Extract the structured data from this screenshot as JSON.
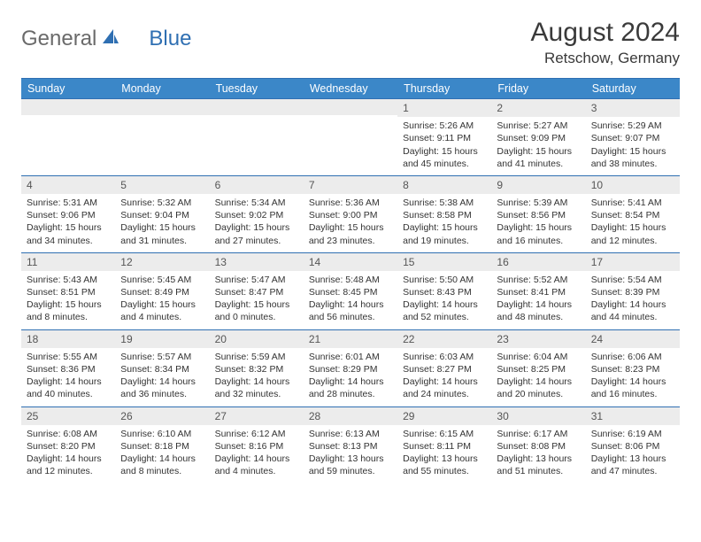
{
  "logo": {
    "text1": "General",
    "text2": "Blue"
  },
  "title": "August 2024",
  "location": "Retschow, Germany",
  "colors": {
    "header_bg": "#3b87c8",
    "header_text": "#ffffff",
    "daynum_bg": "#ececec",
    "border": "#2f6fb2",
    "logo_gray": "#6a6a6a",
    "logo_blue": "#2f6fb2"
  },
  "weekdays": [
    "Sunday",
    "Monday",
    "Tuesday",
    "Wednesday",
    "Thursday",
    "Friday",
    "Saturday"
  ],
  "weeks": [
    [
      {
        "n": "",
        "l1": "",
        "l2": "",
        "l3": "",
        "l4": ""
      },
      {
        "n": "",
        "l1": "",
        "l2": "",
        "l3": "",
        "l4": ""
      },
      {
        "n": "",
        "l1": "",
        "l2": "",
        "l3": "",
        "l4": ""
      },
      {
        "n": "",
        "l1": "",
        "l2": "",
        "l3": "",
        "l4": ""
      },
      {
        "n": "1",
        "l1": "Sunrise: 5:26 AM",
        "l2": "Sunset: 9:11 PM",
        "l3": "Daylight: 15 hours",
        "l4": "and 45 minutes."
      },
      {
        "n": "2",
        "l1": "Sunrise: 5:27 AM",
        "l2": "Sunset: 9:09 PM",
        "l3": "Daylight: 15 hours",
        "l4": "and 41 minutes."
      },
      {
        "n": "3",
        "l1": "Sunrise: 5:29 AM",
        "l2": "Sunset: 9:07 PM",
        "l3": "Daylight: 15 hours",
        "l4": "and 38 minutes."
      }
    ],
    [
      {
        "n": "4",
        "l1": "Sunrise: 5:31 AM",
        "l2": "Sunset: 9:06 PM",
        "l3": "Daylight: 15 hours",
        "l4": "and 34 minutes."
      },
      {
        "n": "5",
        "l1": "Sunrise: 5:32 AM",
        "l2": "Sunset: 9:04 PM",
        "l3": "Daylight: 15 hours",
        "l4": "and 31 minutes."
      },
      {
        "n": "6",
        "l1": "Sunrise: 5:34 AM",
        "l2": "Sunset: 9:02 PM",
        "l3": "Daylight: 15 hours",
        "l4": "and 27 minutes."
      },
      {
        "n": "7",
        "l1": "Sunrise: 5:36 AM",
        "l2": "Sunset: 9:00 PM",
        "l3": "Daylight: 15 hours",
        "l4": "and 23 minutes."
      },
      {
        "n": "8",
        "l1": "Sunrise: 5:38 AM",
        "l2": "Sunset: 8:58 PM",
        "l3": "Daylight: 15 hours",
        "l4": "and 19 minutes."
      },
      {
        "n": "9",
        "l1": "Sunrise: 5:39 AM",
        "l2": "Sunset: 8:56 PM",
        "l3": "Daylight: 15 hours",
        "l4": "and 16 minutes."
      },
      {
        "n": "10",
        "l1": "Sunrise: 5:41 AM",
        "l2": "Sunset: 8:54 PM",
        "l3": "Daylight: 15 hours",
        "l4": "and 12 minutes."
      }
    ],
    [
      {
        "n": "11",
        "l1": "Sunrise: 5:43 AM",
        "l2": "Sunset: 8:51 PM",
        "l3": "Daylight: 15 hours",
        "l4": "and 8 minutes."
      },
      {
        "n": "12",
        "l1": "Sunrise: 5:45 AM",
        "l2": "Sunset: 8:49 PM",
        "l3": "Daylight: 15 hours",
        "l4": "and 4 minutes."
      },
      {
        "n": "13",
        "l1": "Sunrise: 5:47 AM",
        "l2": "Sunset: 8:47 PM",
        "l3": "Daylight: 15 hours",
        "l4": "and 0 minutes."
      },
      {
        "n": "14",
        "l1": "Sunrise: 5:48 AM",
        "l2": "Sunset: 8:45 PM",
        "l3": "Daylight: 14 hours",
        "l4": "and 56 minutes."
      },
      {
        "n": "15",
        "l1": "Sunrise: 5:50 AM",
        "l2": "Sunset: 8:43 PM",
        "l3": "Daylight: 14 hours",
        "l4": "and 52 minutes."
      },
      {
        "n": "16",
        "l1": "Sunrise: 5:52 AM",
        "l2": "Sunset: 8:41 PM",
        "l3": "Daylight: 14 hours",
        "l4": "and 48 minutes."
      },
      {
        "n": "17",
        "l1": "Sunrise: 5:54 AM",
        "l2": "Sunset: 8:39 PM",
        "l3": "Daylight: 14 hours",
        "l4": "and 44 minutes."
      }
    ],
    [
      {
        "n": "18",
        "l1": "Sunrise: 5:55 AM",
        "l2": "Sunset: 8:36 PM",
        "l3": "Daylight: 14 hours",
        "l4": "and 40 minutes."
      },
      {
        "n": "19",
        "l1": "Sunrise: 5:57 AM",
        "l2": "Sunset: 8:34 PM",
        "l3": "Daylight: 14 hours",
        "l4": "and 36 minutes."
      },
      {
        "n": "20",
        "l1": "Sunrise: 5:59 AM",
        "l2": "Sunset: 8:32 PM",
        "l3": "Daylight: 14 hours",
        "l4": "and 32 minutes."
      },
      {
        "n": "21",
        "l1": "Sunrise: 6:01 AM",
        "l2": "Sunset: 8:29 PM",
        "l3": "Daylight: 14 hours",
        "l4": "and 28 minutes."
      },
      {
        "n": "22",
        "l1": "Sunrise: 6:03 AM",
        "l2": "Sunset: 8:27 PM",
        "l3": "Daylight: 14 hours",
        "l4": "and 24 minutes."
      },
      {
        "n": "23",
        "l1": "Sunrise: 6:04 AM",
        "l2": "Sunset: 8:25 PM",
        "l3": "Daylight: 14 hours",
        "l4": "and 20 minutes."
      },
      {
        "n": "24",
        "l1": "Sunrise: 6:06 AM",
        "l2": "Sunset: 8:23 PM",
        "l3": "Daylight: 14 hours",
        "l4": "and 16 minutes."
      }
    ],
    [
      {
        "n": "25",
        "l1": "Sunrise: 6:08 AM",
        "l2": "Sunset: 8:20 PM",
        "l3": "Daylight: 14 hours",
        "l4": "and 12 minutes."
      },
      {
        "n": "26",
        "l1": "Sunrise: 6:10 AM",
        "l2": "Sunset: 8:18 PM",
        "l3": "Daylight: 14 hours",
        "l4": "and 8 minutes."
      },
      {
        "n": "27",
        "l1": "Sunrise: 6:12 AM",
        "l2": "Sunset: 8:16 PM",
        "l3": "Daylight: 14 hours",
        "l4": "and 4 minutes."
      },
      {
        "n": "28",
        "l1": "Sunrise: 6:13 AM",
        "l2": "Sunset: 8:13 PM",
        "l3": "Daylight: 13 hours",
        "l4": "and 59 minutes."
      },
      {
        "n": "29",
        "l1": "Sunrise: 6:15 AM",
        "l2": "Sunset: 8:11 PM",
        "l3": "Daylight: 13 hours",
        "l4": "and 55 minutes."
      },
      {
        "n": "30",
        "l1": "Sunrise: 6:17 AM",
        "l2": "Sunset: 8:08 PM",
        "l3": "Daylight: 13 hours",
        "l4": "and 51 minutes."
      },
      {
        "n": "31",
        "l1": "Sunrise: 6:19 AM",
        "l2": "Sunset: 8:06 PM",
        "l3": "Daylight: 13 hours",
        "l4": "and 47 minutes."
      }
    ]
  ]
}
